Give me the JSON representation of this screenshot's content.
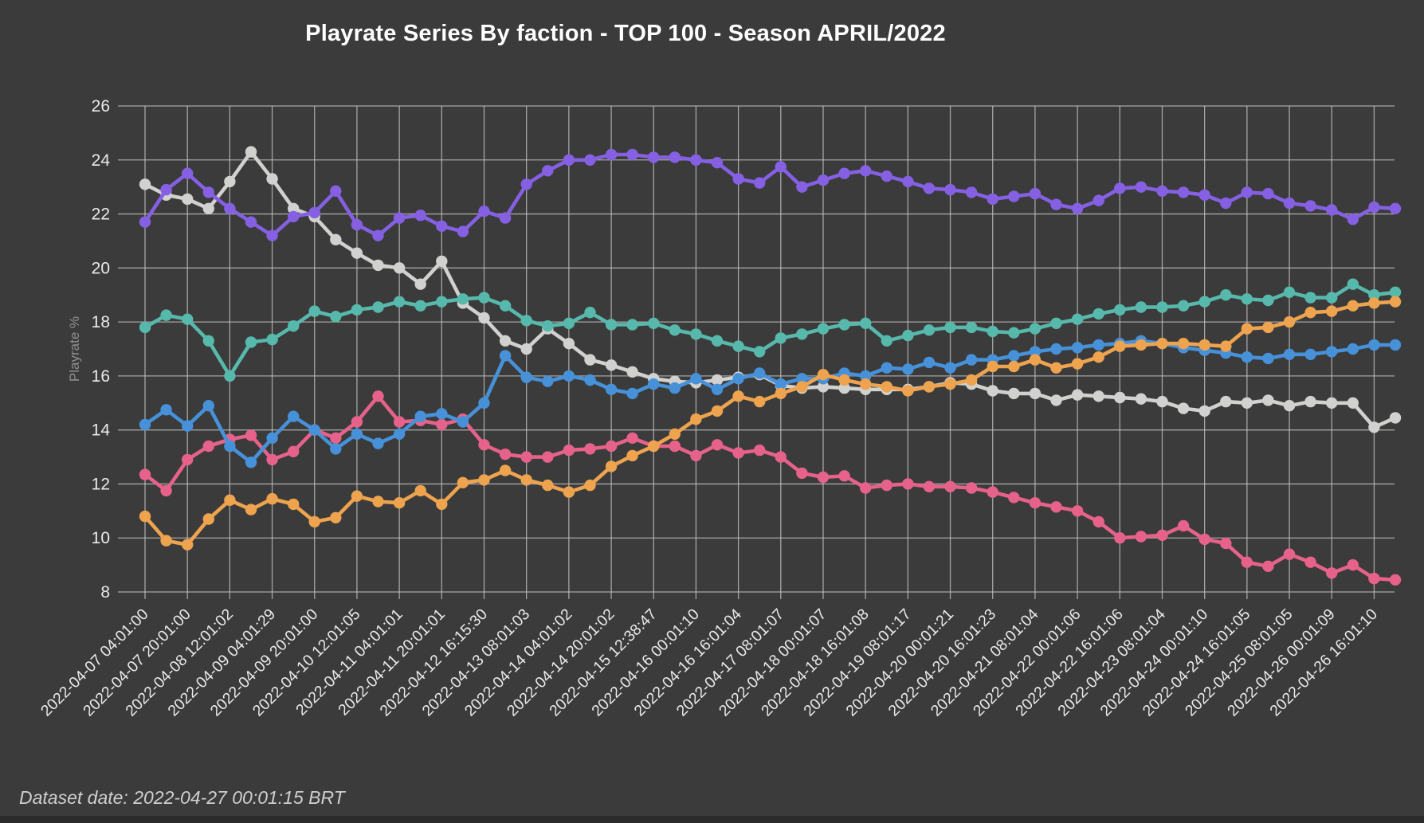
{
  "title": "Playrate Series By faction - TOP 100 - Season APRIL/2022",
  "footer": "Dataset date: 2022-04-27 00:01:15 BRT",
  "colors": {
    "background": "#3b3b3b",
    "grid": "#c9c9c9",
    "tick_text": "#eaeaea",
    "axis_label_text": "#8f8f8f",
    "title_text": "#ffffff",
    "footer_text": "#cfcfcf"
  },
  "chart_data": {
    "type": "line",
    "title": "Playrate Series By faction - TOP 100 - Season APRIL/2022",
    "xlabel": "",
    "ylabel": "Playrate %",
    "ylim": [
      8,
      26
    ],
    "y_ticks": [
      26,
      24,
      22,
      20,
      18,
      16,
      14,
      12,
      10,
      8
    ],
    "grid": true,
    "legend_position": "none",
    "marker_style": "filled-circle",
    "x_tick_labels": [
      "2022-04-07 04:01:00",
      "2022-04-07 20:01:00",
      "2022-04-08 12:01:02",
      "2022-04-09 04:01:29",
      "2022-04-09 20:01:00",
      "2022-04-10 12:01:05",
      "2022-04-11 04:01:01",
      "2022-04-11 20:01:01",
      "2022-04-12 16:15:30",
      "2022-04-13 08:01:03",
      "2022-04-14 04:01:02",
      "2022-04-14 20:01:02",
      "2022-04-15 12:38:47",
      "2022-04-16 00:01:10",
      "2022-04-16 16:01:04",
      "2022-04-17 08:01:07",
      "2022-04-18 00:01:07",
      "2022-04-18 16:01:08",
      "2022-04-19 08:01:17",
      "2022-04-20 00:01:21",
      "2022-04-20 16:01:23",
      "2022-04-21 08:01:04",
      "2022-04-22 00:01:06",
      "2022-04-22 16:01:06",
      "2022-04-23 08:01:04",
      "2022-04-24 00:01:10",
      "2022-04-24 16:01:05",
      "2022-04-25 08:01:05",
      "2022-04-26 00:01:09",
      "2022-04-26 16:01:10"
    ],
    "points_per_tick_interval": 2,
    "series": [
      {
        "name": "gray",
        "color": "#d1d1cf",
        "values": [
          23.1,
          22.7,
          22.55,
          22.2,
          23.2,
          24.3,
          23.3,
          22.2,
          21.9,
          21.05,
          20.55,
          20.1,
          20.0,
          19.4,
          20.25,
          18.7,
          18.15,
          17.3,
          17.0,
          17.75,
          17.2,
          16.6,
          16.4,
          16.15,
          15.9,
          15.8,
          15.75,
          15.85,
          15.95,
          16.05,
          15.65,
          15.55,
          15.6,
          15.55,
          15.5,
          15.5,
          15.5,
          15.6,
          15.75,
          15.7,
          15.45,
          15.35,
          15.35,
          15.1,
          15.3,
          15.25,
          15.2,
          15.15,
          15.05,
          14.8,
          14.7,
          15.05,
          15.0,
          15.1,
          14.9,
          15.05,
          15.0,
          15.0,
          14.1,
          14.45
        ]
      },
      {
        "name": "purple",
        "color": "#8560e2",
        "values": [
          21.7,
          22.9,
          23.5,
          22.8,
          22.2,
          21.7,
          21.2,
          21.9,
          22.05,
          22.85,
          21.6,
          21.2,
          21.85,
          21.95,
          21.55,
          21.35,
          22.1,
          21.85,
          23.1,
          23.6,
          24.0,
          24.0,
          24.2,
          24.2,
          24.1,
          24.1,
          24.0,
          23.9,
          23.3,
          23.15,
          23.75,
          23.0,
          23.25,
          23.5,
          23.6,
          23.4,
          23.2,
          22.95,
          22.9,
          22.8,
          22.55,
          22.65,
          22.75,
          22.35,
          22.2,
          22.5,
          22.95,
          23.0,
          22.85,
          22.8,
          22.7,
          22.4,
          22.8,
          22.75,
          22.4,
          22.3,
          22.15,
          21.8,
          22.25,
          22.2
        ]
      },
      {
        "name": "teal",
        "color": "#57b9ac",
        "values": [
          17.8,
          18.25,
          18.1,
          17.3,
          16.0,
          17.25,
          17.35,
          17.85,
          18.4,
          18.2,
          18.45,
          18.55,
          18.75,
          18.6,
          18.75,
          18.85,
          18.9,
          18.6,
          18.05,
          17.85,
          17.95,
          18.35,
          17.9,
          17.9,
          17.95,
          17.7,
          17.55,
          17.3,
          17.1,
          16.9,
          17.4,
          17.55,
          17.75,
          17.9,
          17.95,
          17.3,
          17.5,
          17.7,
          17.8,
          17.8,
          17.65,
          17.6,
          17.75,
          17.95,
          18.1,
          18.3,
          18.45,
          18.55,
          18.55,
          18.6,
          18.75,
          19.0,
          18.85,
          18.8,
          19.1,
          18.9,
          18.9,
          19.4,
          19.0,
          19.1
        ]
      },
      {
        "name": "pink",
        "color": "#e6628a",
        "values": [
          12.35,
          11.75,
          12.9,
          13.4,
          13.65,
          13.8,
          12.9,
          13.2,
          14.0,
          13.7,
          14.3,
          15.25,
          14.3,
          14.35,
          14.2,
          14.4,
          13.45,
          13.1,
          13.0,
          13.0,
          13.25,
          13.3,
          13.4,
          13.7,
          13.4,
          13.4,
          13.05,
          13.45,
          13.15,
          13.25,
          13.0,
          12.4,
          12.25,
          12.3,
          11.85,
          11.95,
          12.0,
          11.9,
          11.9,
          11.85,
          11.7,
          11.5,
          11.3,
          11.15,
          11.0,
          10.6,
          10.0,
          10.05,
          10.1,
          10.45,
          9.95,
          9.8,
          9.1,
          8.95,
          9.4,
          9.1,
          8.7,
          9.0,
          8.5,
          8.45
        ]
      },
      {
        "name": "blue",
        "color": "#4791d9",
        "values": [
          14.2,
          14.75,
          14.15,
          14.9,
          13.4,
          12.8,
          13.7,
          14.5,
          14.0,
          13.3,
          13.85,
          13.5,
          13.85,
          14.5,
          14.6,
          14.3,
          15.0,
          16.75,
          15.95,
          15.8,
          16.0,
          15.85,
          15.5,
          15.35,
          15.7,
          15.55,
          15.9,
          15.5,
          15.9,
          16.1,
          15.7,
          15.9,
          15.9,
          16.1,
          16.0,
          16.3,
          16.25,
          16.5,
          16.3,
          16.6,
          16.6,
          16.75,
          16.9,
          17.0,
          17.05,
          17.15,
          17.2,
          17.3,
          17.2,
          17.05,
          16.95,
          16.85,
          16.7,
          16.65,
          16.8,
          16.8,
          16.9,
          17.0,
          17.15,
          17.15
        ]
      },
      {
        "name": "orange",
        "color": "#eea34f",
        "values": [
          10.8,
          9.9,
          9.75,
          10.7,
          11.4,
          11.05,
          11.45,
          11.25,
          10.6,
          10.75,
          11.55,
          11.35,
          11.3,
          11.75,
          11.25,
          12.05,
          12.15,
          12.5,
          12.15,
          11.95,
          11.7,
          11.95,
          12.65,
          13.05,
          13.4,
          13.85,
          14.4,
          14.7,
          15.25,
          15.05,
          15.35,
          15.6,
          16.05,
          15.85,
          15.7,
          15.6,
          15.45,
          15.6,
          15.7,
          15.85,
          16.35,
          16.35,
          16.6,
          16.3,
          16.45,
          16.7,
          17.1,
          17.15,
          17.2,
          17.2,
          17.15,
          17.1,
          17.75,
          17.8,
          18.0,
          18.35,
          18.4,
          18.6,
          18.7,
          18.75
        ]
      }
    ]
  }
}
